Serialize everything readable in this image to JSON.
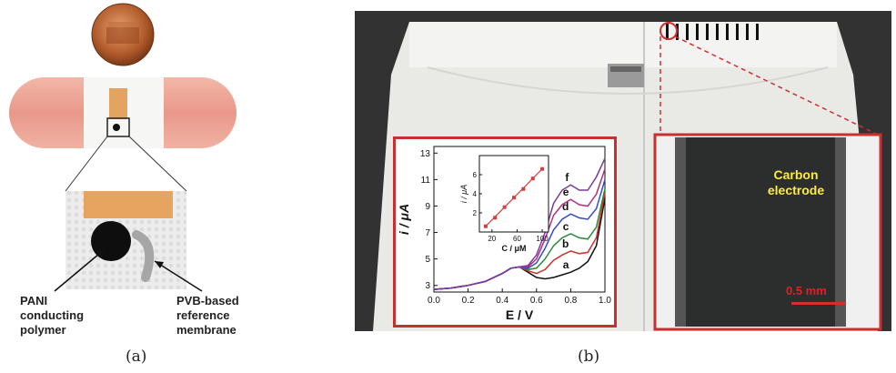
{
  "panel_a": {
    "caption": "(a)",
    "label_pani": [
      "PANI",
      "conducting",
      "polymer"
    ],
    "label_pvb": [
      "PVB-based",
      "reference",
      "membrane"
    ]
  },
  "panel_b": {
    "caption": "(b)",
    "zoom_label": [
      "Carbon",
      "electrode"
    ],
    "scale_bar": "0.5 mm"
  },
  "chart_data": [
    {
      "type": "line",
      "xlabel": "E / V",
      "ylabel": "i / μA",
      "xlim": [
        0.0,
        1.0
      ],
      "ylim": [
        2.5,
        13.5
      ],
      "xticks": [
        "0.0",
        "0.2",
        "0.4",
        "0.6",
        "0.8",
        "1.0"
      ],
      "yticks": [
        "3",
        "5",
        "7",
        "9",
        "11",
        "13"
      ],
      "series": [
        {
          "name": "a",
          "color": "#111111",
          "x": [
            0.0,
            0.1,
            0.2,
            0.3,
            0.4,
            0.45,
            0.5,
            0.55,
            0.6,
            0.65,
            0.7,
            0.75,
            0.8,
            0.85,
            0.9,
            0.95,
            1.0
          ],
          "values": [
            2.7,
            2.8,
            3.0,
            3.3,
            3.9,
            4.3,
            4.4,
            4.0,
            3.6,
            3.5,
            3.6,
            3.8,
            4.0,
            4.3,
            4.8,
            6.0,
            9.6
          ]
        },
        {
          "name": "b",
          "color": "#d03030",
          "x": [
            0.0,
            0.1,
            0.2,
            0.3,
            0.4,
            0.45,
            0.5,
            0.55,
            0.6,
            0.65,
            0.7,
            0.75,
            0.8,
            0.85,
            0.9,
            0.95,
            1.0
          ],
          "values": [
            2.7,
            2.8,
            3.0,
            3.3,
            3.9,
            4.3,
            4.4,
            4.1,
            3.9,
            4.2,
            4.9,
            5.3,
            5.6,
            5.4,
            5.5,
            6.6,
            10.0
          ]
        },
        {
          "name": "c",
          "color": "#2a8a3a",
          "x": [
            0.0,
            0.1,
            0.2,
            0.3,
            0.4,
            0.45,
            0.5,
            0.55,
            0.6,
            0.65,
            0.7,
            0.75,
            0.8,
            0.85,
            0.9,
            0.95,
            1.0
          ],
          "values": [
            2.7,
            2.8,
            3.0,
            3.3,
            3.9,
            4.3,
            4.4,
            4.2,
            4.3,
            5.0,
            6.0,
            6.6,
            6.9,
            6.6,
            6.5,
            7.4,
            10.3
          ]
        },
        {
          "name": "d",
          "color": "#3050c0",
          "x": [
            0.0,
            0.1,
            0.2,
            0.3,
            0.4,
            0.45,
            0.5,
            0.55,
            0.6,
            0.65,
            0.7,
            0.75,
            0.8,
            0.85,
            0.9,
            0.95,
            1.0
          ],
          "values": [
            2.7,
            2.8,
            3.0,
            3.3,
            3.9,
            4.3,
            4.4,
            4.3,
            4.7,
            5.8,
            7.2,
            8.0,
            8.4,
            8.1,
            8.0,
            8.8,
            11.0
          ]
        },
        {
          "name": "e",
          "color": "#b03080",
          "x": [
            0.0,
            0.1,
            0.2,
            0.3,
            0.4,
            0.45,
            0.5,
            0.55,
            0.6,
            0.65,
            0.7,
            0.75,
            0.8,
            0.85,
            0.9,
            0.95,
            1.0
          ],
          "values": [
            2.7,
            2.8,
            3.0,
            3.3,
            3.9,
            4.3,
            4.4,
            4.4,
            5.0,
            6.5,
            8.3,
            9.1,
            9.5,
            9.1,
            9.0,
            9.9,
            11.8
          ]
        },
        {
          "name": "f",
          "color": "#7a3a9a",
          "x": [
            0.0,
            0.1,
            0.2,
            0.3,
            0.4,
            0.45,
            0.5,
            0.55,
            0.6,
            0.65,
            0.7,
            0.75,
            0.8,
            0.85,
            0.9,
            0.95,
            1.0
          ],
          "values": [
            2.7,
            2.8,
            3.0,
            3.3,
            3.9,
            4.3,
            4.4,
            4.5,
            5.3,
            7.0,
            9.2,
            10.2,
            10.6,
            10.2,
            10.2,
            11.2,
            12.6
          ]
        }
      ]
    },
    {
      "type": "scatter",
      "xlabel": "C / μM",
      "ylabel": "i / μA",
      "xlim": [
        0,
        110
      ],
      "ylim": [
        0,
        8
      ],
      "xticks": [
        "20",
        "60",
        "100"
      ],
      "yticks": [
        "2",
        "4",
        "6"
      ],
      "x": [
        10,
        25,
        40,
        55,
        70,
        85,
        100
      ],
      "values": [
        0.6,
        1.5,
        2.6,
        3.6,
        4.5,
        5.6,
        6.6
      ],
      "fit_color": "#d04040"
    }
  ]
}
